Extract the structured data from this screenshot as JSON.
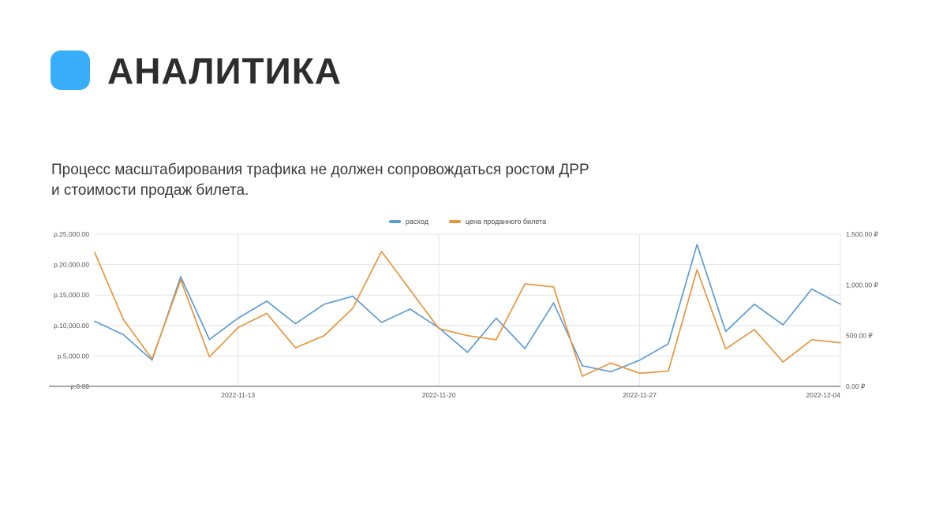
{
  "header": {
    "title": "АНАЛИТИКА",
    "accent_color": "#38aefa"
  },
  "intro": {
    "line1": "Процесс масштабирования трафика не должен сопровождаться ростом ДРР",
    "line2": "и стоимости продаж билета."
  },
  "chart_data": {
    "type": "line",
    "title": "",
    "grid": true,
    "legend_position": "top-center",
    "x": [
      "2022-11-08",
      "2022-11-09",
      "2022-11-10",
      "2022-11-11",
      "2022-11-12",
      "2022-11-13",
      "2022-11-14",
      "2022-11-15",
      "2022-11-16",
      "2022-11-17",
      "2022-11-18",
      "2022-11-19",
      "2022-11-20",
      "2022-11-21",
      "2022-11-22",
      "2022-11-23",
      "2022-11-24",
      "2022-11-25",
      "2022-11-26",
      "2022-11-27",
      "2022-11-28",
      "2022-11-29",
      "2022-11-30",
      "2022-12-01",
      "2022-12-02",
      "2022-12-03",
      "2022-12-04"
    ],
    "x_tick_indices": [
      5,
      12,
      19,
      26
    ],
    "x_tick_labels": [
      "2022-11-13",
      "2022-11-20",
      "2022-11-27",
      "2022-12-04"
    ],
    "left_axis": {
      "range": [
        0,
        25000
      ],
      "tick_values": [
        0,
        5000,
        10000,
        15000,
        20000,
        25000
      ],
      "tick_labels": [
        "р.0.00",
        "р.5,000.00",
        "р.10,000.00",
        "р.15,000.00",
        "р.20,000.00",
        "р.25,000.00"
      ]
    },
    "right_axis": {
      "range": [
        0,
        1500
      ],
      "tick_values": [
        0,
        500,
        1000,
        1500
      ],
      "tick_labels": [
        "0.00 ₽",
        "500.00 ₽",
        "1,000.00 ₽",
        "1,500.00 ₽"
      ]
    },
    "series": [
      {
        "name": "расход",
        "axis": "left",
        "color": "#5d9cd4",
        "values": [
          10700,
          8500,
          4300,
          18000,
          7700,
          11200,
          14000,
          10300,
          13500,
          14800,
          10500,
          12700,
          9600,
          5600,
          11200,
          6200,
          13700,
          3400,
          2400,
          4300,
          7000,
          23300,
          9000,
          13500,
          10100,
          16000,
          13500
        ]
      },
      {
        "name": "цена проданного билета",
        "axis": "right",
        "color": "#e8963c",
        "values": [
          1320,
          660,
          270,
          1050,
          290,
          580,
          720,
          380,
          500,
          770,
          1330,
          950,
          570,
          500,
          460,
          1010,
          980,
          100,
          230,
          130,
          150,
          1150,
          370,
          560,
          240,
          460,
          430
        ]
      }
    ],
    "colors": {
      "gridline": "#e4e4e4",
      "axis_line": "#a6a6a6",
      "tick_text": "#555555"
    }
  }
}
